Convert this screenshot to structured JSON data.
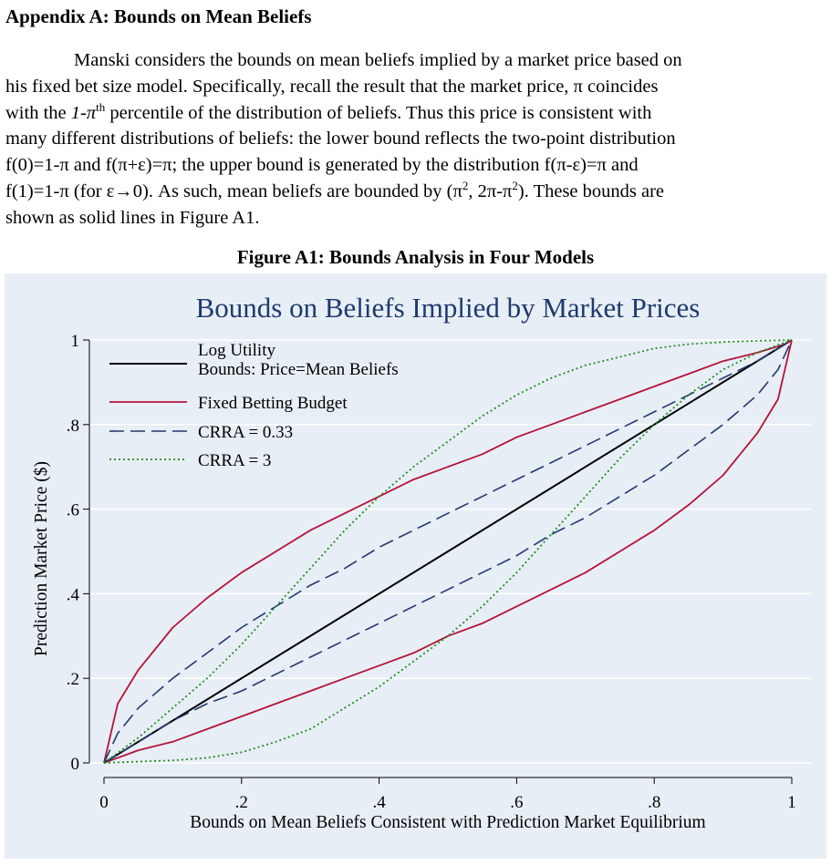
{
  "heading": "Appendix A: Bounds on Mean Beliefs",
  "paragraph_lines": [
    "Manski considers the bounds on mean beliefs implied by a market price based on",
    "his fixed bet size model.  Specifically, recall the result that the market price, π coincides",
    "with the 1-π th percentile of the distribution of beliefs.  Thus this price is consistent with",
    "many different distributions of beliefs: the lower bound reflects the two-point distribution",
    "f(0)=1-π and f(π+ε)=π; the upper bound is generated by the distribution f(π-ε)=π and",
    "f(1)=1-π (for ε→0).  As such, mean beliefs are bounded by (π 2, 2π-π 2).  These bounds are",
    "shown as solid lines in Figure A1."
  ],
  "para_parts": {
    "l3_a": "with the ",
    "l3_b": "1-π",
    "l3_sup": "th",
    "l3_c": " percentile of the distribution of beliefs.  Thus this price is consistent with",
    "l6_a": "f(1)=1-π (for ε→0).  As such, mean beliefs are bounded by (π",
    "l6_sup": "2",
    "l6_b": ", 2π-π",
    "l6_c": ").  These bounds are"
  },
  "figure_caption": "Figure A1: Bounds Analysis in Four Models",
  "colors": {
    "panel_bg": "#e8eef5",
    "log_utility": "#000000",
    "fixed_budget": "#b5133a",
    "crra_033": "#1f3a6e",
    "crra_3": "#1e8c1e",
    "title": "#1f3a6e",
    "grid": "#ffffff"
  },
  "chart_data": {
    "type": "line",
    "title": "Bounds on Beliefs Implied by Market Prices",
    "xlabel": "Bounds on Mean Beliefs Consistent with Prediction Market Equilibrium",
    "ylabel": "Prediction Market Price ($)",
    "xlim": [
      0,
      1
    ],
    "ylim": [
      0,
      1
    ],
    "x_ticks": [
      0,
      0.2,
      0.4,
      0.6,
      0.8,
      1
    ],
    "x_tick_labels": [
      "0",
      ".2",
      ".4",
      ".6",
      ".8",
      "1"
    ],
    "y_ticks": [
      0,
      0.2,
      0.4,
      0.6,
      0.8,
      1
    ],
    "y_tick_labels": [
      "0",
      ".2",
      ".4",
      ".6",
      ".8",
      "1"
    ],
    "grid": true,
    "legend_position": "top-left",
    "legend": [
      {
        "label": "Log Utility",
        "label2": "Bounds: Price=Mean Beliefs",
        "style": "solid",
        "color": "#000000"
      },
      {
        "label": "Fixed Betting Budget",
        "style": "solid",
        "color": "#b5133a"
      },
      {
        "label": "CRRA = 0.33",
        "style": "dashed",
        "color": "#1f3a6e"
      },
      {
        "label": "CRRA = 3",
        "style": "dotted",
        "color": "#1e8c1e"
      }
    ],
    "series": [
      {
        "name": "Log Utility",
        "x": [
          0,
          0.5,
          1
        ],
        "y": [
          0,
          0.5,
          1
        ]
      },
      {
        "name": "Fixed Betting Budget",
        "bound": "upper",
        "x": [
          0,
          0.02,
          0.05,
          0.1,
          0.15,
          0.2,
          0.25,
          0.3,
          0.35,
          0.4,
          0.45,
          0.5,
          0.55,
          0.6,
          0.65,
          0.7,
          0.75,
          0.8,
          0.85,
          0.9,
          0.95,
          0.99,
          1
        ],
        "y": [
          0,
          0.14,
          0.22,
          0.32,
          0.39,
          0.45,
          0.5,
          0.55,
          0.59,
          0.63,
          0.67,
          0.7,
          0.73,
          0.77,
          0.8,
          0.83,
          0.86,
          0.89,
          0.92,
          0.95,
          0.97,
          0.99,
          1
        ]
      },
      {
        "name": "Fixed Betting Budget",
        "bound": "lower",
        "x": [
          0,
          0.05,
          0.1,
          0.15,
          0.2,
          0.25,
          0.3,
          0.35,
          0.4,
          0.45,
          0.5,
          0.55,
          0.6,
          0.65,
          0.7,
          0.75,
          0.8,
          0.85,
          0.9,
          0.95,
          0.98,
          1
        ],
        "y": [
          0,
          0.03,
          0.05,
          0.08,
          0.11,
          0.14,
          0.17,
          0.2,
          0.23,
          0.26,
          0.3,
          0.33,
          0.37,
          0.41,
          0.45,
          0.5,
          0.55,
          0.61,
          0.68,
          0.78,
          0.86,
          1
        ]
      },
      {
        "name": "CRRA = 0.33",
        "bound": "upper",
        "x": [
          0,
          0.02,
          0.05,
          0.1,
          0.15,
          0.2,
          0.25,
          0.3,
          0.35,
          0.4,
          0.45,
          0.5,
          0.55,
          0.6,
          0.65,
          0.7,
          0.75,
          0.8,
          0.85,
          0.9,
          0.95,
          1
        ],
        "y": [
          0,
          0.07,
          0.13,
          0.2,
          0.26,
          0.32,
          0.37,
          0.42,
          0.46,
          0.51,
          0.55,
          0.59,
          0.63,
          0.67,
          0.71,
          0.75,
          0.79,
          0.83,
          0.87,
          0.91,
          0.95,
          1
        ]
      },
      {
        "name": "CRRA = 0.33",
        "bound": "lower",
        "x": [
          0,
          0.05,
          0.1,
          0.15,
          0.2,
          0.25,
          0.3,
          0.35,
          0.4,
          0.45,
          0.5,
          0.55,
          0.6,
          0.65,
          0.7,
          0.75,
          0.8,
          0.85,
          0.9,
          0.95,
          0.98,
          1
        ],
        "y": [
          0,
          0.05,
          0.1,
          0.14,
          0.17,
          0.21,
          0.25,
          0.29,
          0.33,
          0.37,
          0.41,
          0.45,
          0.49,
          0.54,
          0.58,
          0.63,
          0.68,
          0.74,
          0.8,
          0.87,
          0.93,
          1
        ]
      },
      {
        "name": "CRRA = 3",
        "bound": "upper",
        "x": [
          0,
          0.05,
          0.1,
          0.15,
          0.2,
          0.25,
          0.3,
          0.35,
          0.4,
          0.45,
          0.5,
          0.55,
          0.6,
          0.65,
          0.7,
          0.75,
          0.8,
          0.85,
          0.9,
          0.95,
          1
        ],
        "y": [
          0,
          0.06,
          0.13,
          0.2,
          0.28,
          0.37,
          0.46,
          0.55,
          0.63,
          0.7,
          0.76,
          0.82,
          0.87,
          0.91,
          0.94,
          0.96,
          0.98,
          0.99,
          0.995,
          0.998,
          1
        ]
      },
      {
        "name": "CRRA = 3",
        "bound": "lower",
        "x": [
          0,
          0.05,
          0.1,
          0.15,
          0.2,
          0.25,
          0.3,
          0.35,
          0.4,
          0.45,
          0.5,
          0.55,
          0.6,
          0.65,
          0.7,
          0.75,
          0.8,
          0.85,
          0.9,
          0.95,
          1
        ],
        "y": [
          0,
          0.003,
          0.006,
          0.012,
          0.025,
          0.05,
          0.08,
          0.13,
          0.18,
          0.24,
          0.3,
          0.37,
          0.45,
          0.54,
          0.63,
          0.72,
          0.8,
          0.87,
          0.93,
          0.97,
          1
        ]
      }
    ]
  }
}
